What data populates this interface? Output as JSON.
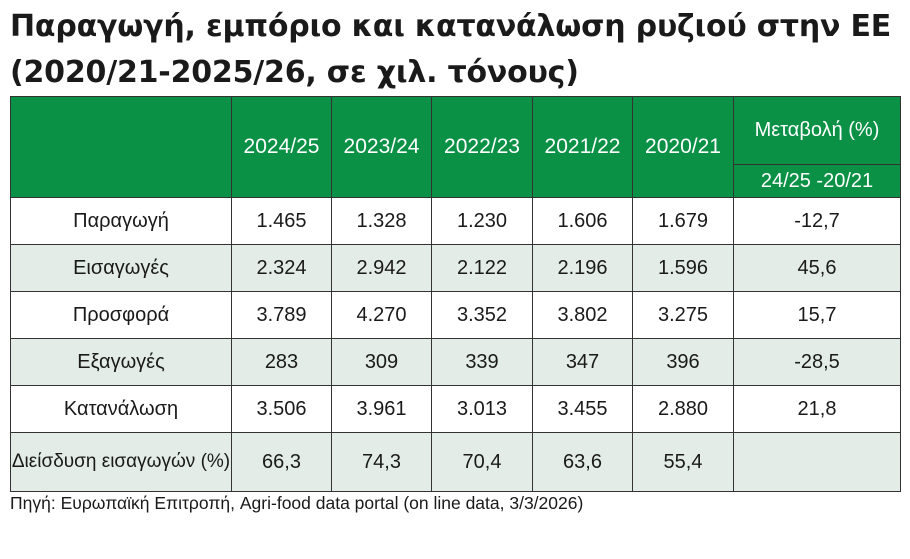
{
  "title": "Παραγωγή, εμπόριο και κατανάλωση ρυζιού στην ΕΕ (2020/21-2025/26, σε χιλ. τόνους)",
  "source": "Πηγή: Ευρωπαϊκή Επιτροπή, Agri-food data portal (on line data, 3/3/2026)",
  "colors": {
    "header_bg": "#0a9146",
    "header_text": "#ffffff",
    "shaded_row": "#e3ece6",
    "border": "#333333"
  },
  "chart_data": {
    "type": "table",
    "columns": [
      "2024/25",
      "2023/24",
      "2022/23",
      "2021/22",
      "2020/21"
    ],
    "change_header": "Μεταβολή (%)",
    "change_subheader": "24/25 -20/21",
    "rows": [
      {
        "label": "Παραγωγή",
        "values": [
          "1.465",
          "1.328",
          "1.230",
          "1.606",
          "1.679"
        ],
        "change": "-12,7"
      },
      {
        "label": "Εισαγωγές",
        "values": [
          "2.324",
          "2.942",
          "2.122",
          "2.196",
          "1.596"
        ],
        "change": "45,6"
      },
      {
        "label": "Προσφορά",
        "values": [
          "3.789",
          "4.270",
          "3.352",
          "3.802",
          "3.275"
        ],
        "change": "15,7"
      },
      {
        "label": "Εξαγωγές",
        "values": [
          "283",
          "309",
          "339",
          "347",
          "396"
        ],
        "change": "-28,5"
      },
      {
        "label": "Κατανάλωση",
        "values": [
          "3.506",
          "3.961",
          "3.013",
          "3.455",
          "2.880"
        ],
        "change": "21,8"
      },
      {
        "label": "Διείσδυση εισαγωγών (%)",
        "values": [
          "66,3",
          "74,3",
          "70,4",
          "63,6",
          "55,4"
        ],
        "change": ""
      }
    ]
  }
}
